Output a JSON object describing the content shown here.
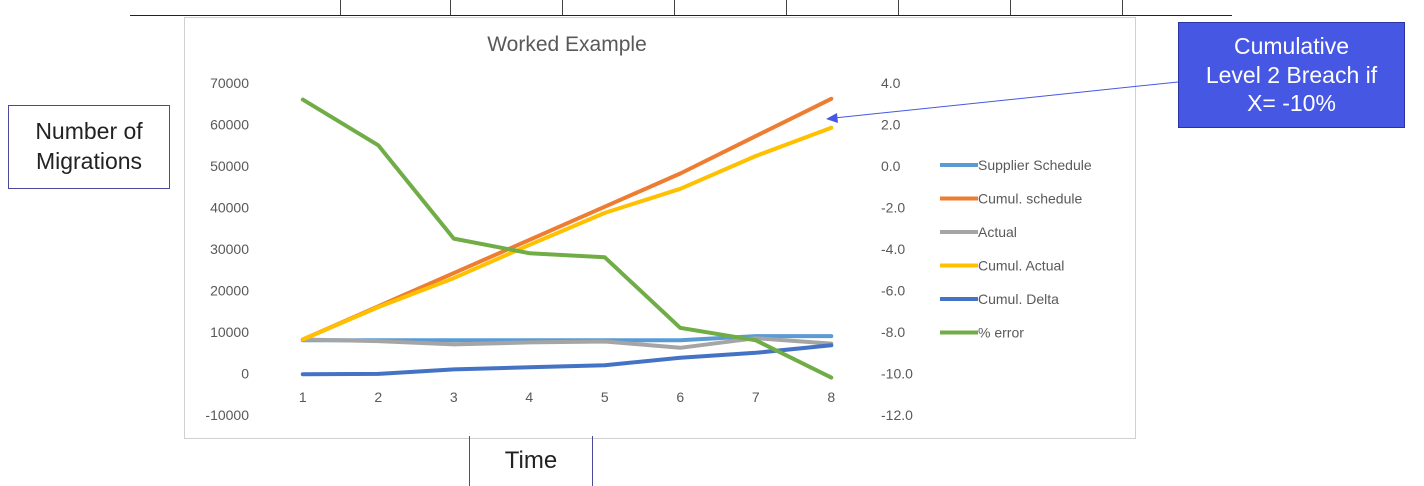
{
  "y_axis_label": "Number of\nMigrations",
  "x_axis_label": "Time",
  "annotation": {
    "text": "Cumulative\nLevel 2 Breach if\nX= -10%",
    "fill_color": "#4657e4"
  },
  "chart_data": {
    "type": "line",
    "title": "Worked Example",
    "x": [
      1,
      2,
      3,
      4,
      5,
      6,
      7,
      8
    ],
    "ylim": [
      -10000,
      70000
    ],
    "y2lim": [
      -12.0,
      4.0
    ],
    "y_ticks": [
      "70000",
      "60000",
      "50000",
      "40000",
      "30000",
      "20000",
      "10000",
      "0",
      "-10000"
    ],
    "y2_ticks": [
      "4.0",
      "2.0",
      "0.0",
      "-2.0",
      "-4.0",
      "-6.0",
      "-8.0",
      "-10.0",
      "-12.0"
    ],
    "legend_position": "right",
    "series": [
      {
        "name": "Supplier  Schedule",
        "color": "#5b9bd5",
        "axis": "left",
        "values": [
          8000,
          8000,
          8000,
          8000,
          8000,
          8000,
          9000,
          9000
        ]
      },
      {
        "name": "Cumul. schedule",
        "color": "#ed7d31",
        "axis": "left",
        "values": [
          8200,
          16200,
          24200,
          32200,
          40200,
          48200,
          57200,
          66200
        ]
      },
      {
        "name": "Actual",
        "color": "#a5a5a5",
        "axis": "left",
        "values": [
          8200,
          7800,
          7000,
          7500,
          7700,
          6200,
          8500,
          7200
        ]
      },
      {
        "name": "Cumul. Actual",
        "color": "#ffc000",
        "axis": "left",
        "values": [
          8200,
          16000,
          23000,
          31000,
          38700,
          44500,
          52400,
          59200
        ]
      },
      {
        "name": "Cumul. Delta",
        "color": "#4472c4",
        "axis": "left",
        "values": [
          -200,
          -100,
          1000,
          1500,
          2000,
          3800,
          5000,
          6800
        ]
      },
      {
        "name": "% error",
        "color": "#70ad47",
        "axis": "right",
        "values": [
          3.2,
          1.0,
          -3.5,
          -4.2,
          -4.4,
          -7.8,
          -8.4,
          -10.2
        ]
      }
    ]
  }
}
